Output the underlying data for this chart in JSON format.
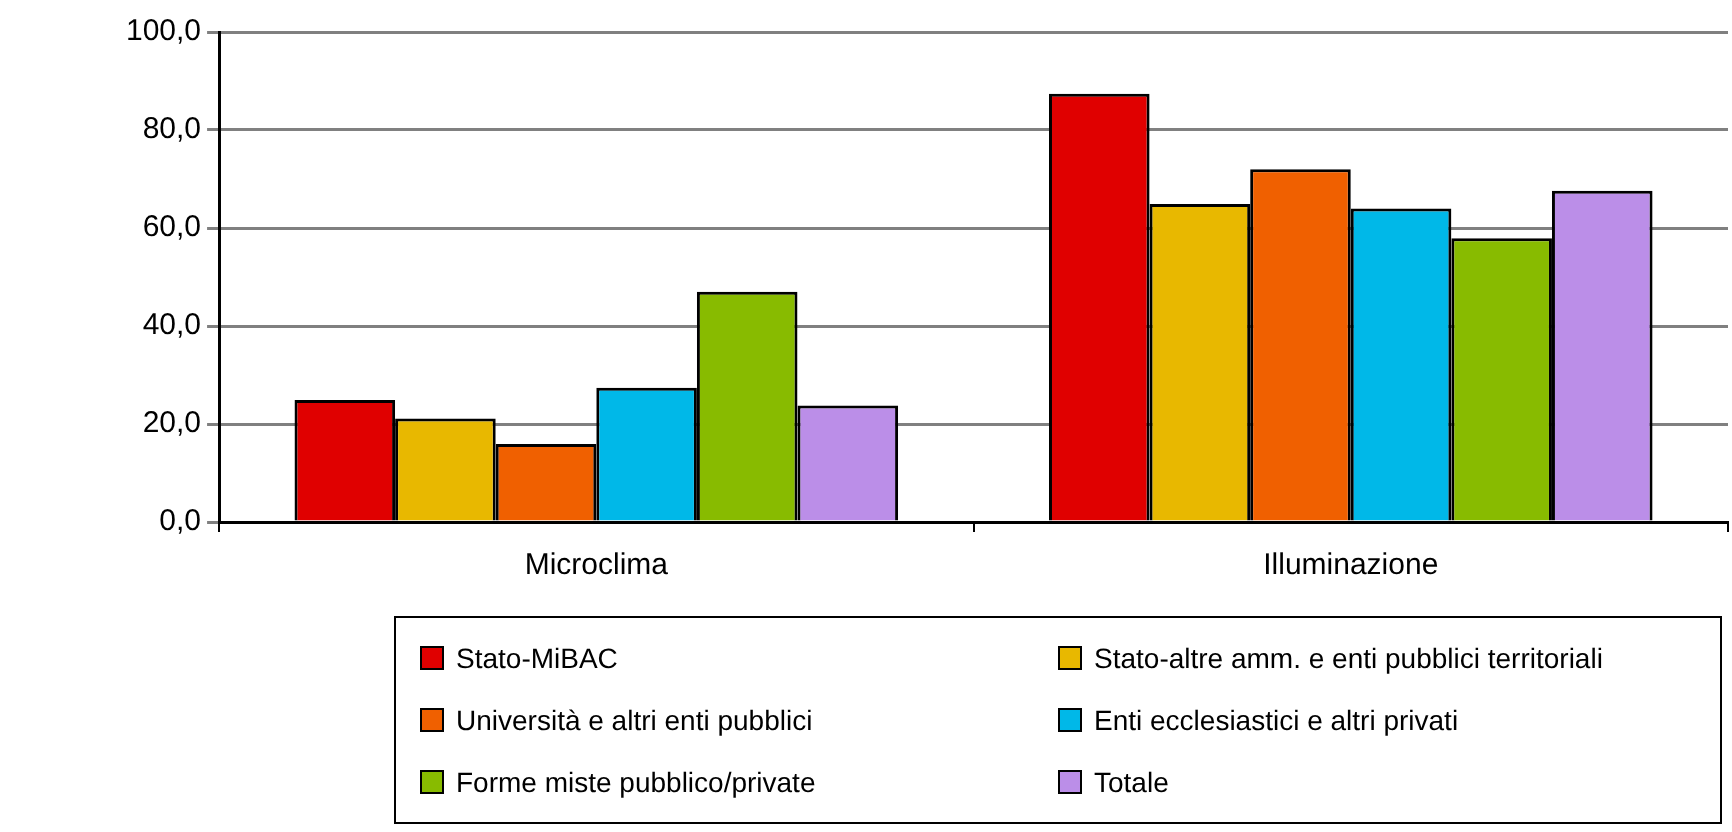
{
  "chart_data": {
    "type": "bar",
    "categories": [
      "Microclima",
      "Illuminazione"
    ],
    "series": [
      {
        "name": "Stato-MiBAC",
        "color": "#e00000",
        "values": [
          24.9,
          87.4
        ]
      },
      {
        "name": "Stato-altre amm. e enti pubblici territoriali",
        "color": "#e8b800",
        "values": [
          21.1,
          64.9
        ]
      },
      {
        "name": "Università e altri enti pubblici",
        "color": "#f06000",
        "values": [
          15.9,
          72.0
        ]
      },
      {
        "name": "Enti ecclesiastici e altri privati",
        "color": "#00b8e8",
        "values": [
          27.4,
          64.0
        ]
      },
      {
        "name": "Forme miste pubblico/private",
        "color": "#88bb00",
        "values": [
          47.0,
          57.9
        ]
      },
      {
        "name": "Totale",
        "color": "#bb8ee8",
        "values": [
          23.8,
          67.6
        ]
      }
    ],
    "ylim": [
      0,
      100
    ],
    "yticks": [
      {
        "value": 0,
        "label": "0,0"
      },
      {
        "value": 20,
        "label": "20,0"
      },
      {
        "value": 40,
        "label": "40,0"
      },
      {
        "value": 60,
        "label": "60,0"
      },
      {
        "value": 80,
        "label": "80,0"
      },
      {
        "value": 100,
        "label": "100,0"
      }
    ],
    "grid": "y",
    "legend": "bottom"
  }
}
